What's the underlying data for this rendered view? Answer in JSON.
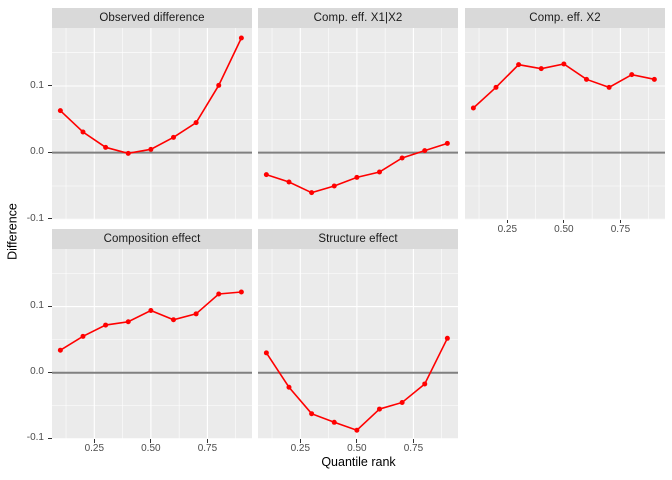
{
  "chart_data": {
    "type": "line",
    "title": "",
    "xlabel": "Quantile rank",
    "ylabel": "Difference",
    "facet_layout": {
      "rows": 2,
      "cols": 3,
      "empty_slots": [
        "row2-col3"
      ]
    },
    "x": [
      0.1,
      0.2,
      0.3,
      0.4,
      0.5,
      0.6,
      0.7,
      0.8,
      0.9
    ],
    "xlim": [
      0.063,
      0.947
    ],
    "ylim": [
      -0.101,
      0.187
    ],
    "x_ticks": [
      0.25,
      0.5,
      0.75
    ],
    "x_tick_labels": [
      "0.25",
      "0.50",
      "0.75"
    ],
    "x_minor_ticks": [
      0.125,
      0.375,
      0.625,
      0.875
    ],
    "y_ticks": [
      0.1,
      0.0,
      -0.1
    ],
    "y_tick_labels": [
      "0.1",
      "0.0",
      "-0.1"
    ],
    "y_minor_ticks": [
      0.15,
      0.05,
      -0.05
    ],
    "grid": true,
    "legend": "none",
    "reference_line_y": 0,
    "panels": [
      {
        "title": "Observed difference",
        "values": [
          0.063,
          0.031,
          0.008,
          -0.001,
          0.005,
          0.023,
          0.045,
          0.101,
          0.172
        ]
      },
      {
        "title": "Comp. eff. X1|X2",
        "values": [
          -0.033,
          -0.044,
          -0.06,
          -0.05,
          -0.037,
          -0.029,
          -0.008,
          0.003,
          0.014
        ]
      },
      {
        "title": "Comp. eff. X2",
        "values": [
          0.067,
          0.098,
          0.132,
          0.126,
          0.133,
          0.11,
          0.098,
          0.117,
          0.11
        ]
      },
      {
        "title": "Composition effect",
        "values": [
          0.034,
          0.055,
          0.072,
          0.077,
          0.094,
          0.08,
          0.089,
          0.119,
          0.122
        ]
      },
      {
        "title": "Structure effect",
        "values": [
          0.03,
          -0.022,
          -0.062,
          -0.075,
          -0.087,
          -0.055,
          -0.045,
          -0.017,
          0.052
        ]
      }
    ],
    "colors": {
      "series": "#FF0000",
      "reference_line": "#808080",
      "panel_bg": "#EBEBEB",
      "strip_bg": "#D9D9D9",
      "grid": "#FFFFFF",
      "axis_text": "#4D4D4D",
      "strip_text": "#1A1A1A",
      "axis_title": "#000000",
      "tick_mark": "#333333"
    }
  }
}
